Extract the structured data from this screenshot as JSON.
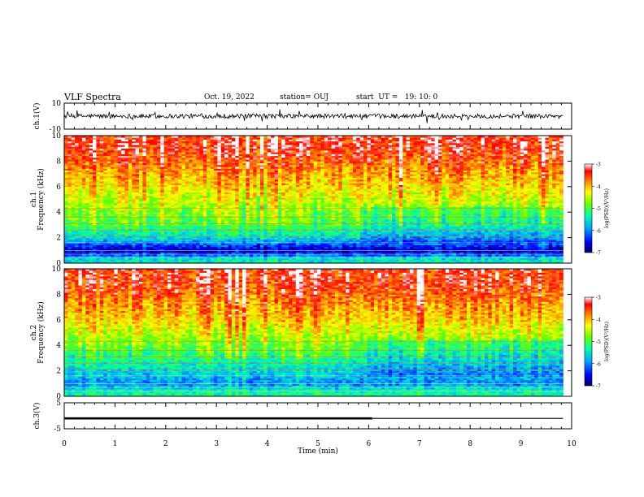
{
  "header": {
    "title": "VLF Spectra",
    "date": "Oct. 19, 2022",
    "station": "station= OUJ",
    "start": "start  UT =   19: 10: 0"
  },
  "chart_data": [
    {
      "type": "line",
      "panel": "ch1-waveform",
      "ylabel": "ch.1(V)",
      "ylim": [
        -10,
        10
      ],
      "yticks": [
        "10",
        "-10"
      ],
      "xlim": [
        0,
        10
      ],
      "color": "#000000",
      "series": [
        {
          "baseline": 0,
          "noise_amplitude": 3.5
        }
      ]
    },
    {
      "type": "heatmap",
      "panel": "ch1-spectrogram",
      "ylabel": "ch.1\nFrequency (kHz)",
      "ylim": [
        0,
        10
      ],
      "yticks": [
        "0",
        "2",
        "4",
        "6",
        "8",
        "10"
      ],
      "xlim": [
        0,
        9.83
      ],
      "colorbar": {
        "label": "log(PSD)(V²/Hz)",
        "range": [
          -7,
          -3
        ],
        "ticks": [
          "-3",
          "-4",
          "-5",
          "-6",
          "-7"
        ],
        "colors": [
          "#000066",
          "#0000ff",
          "#00aaff",
          "#00ffaa",
          "#66ff00",
          "#ffff00",
          "#ff8800",
          "#ff0000",
          "#ffffff"
        ]
      },
      "bands": [
        {
          "freq_khz": 9,
          "log_psd": -3.4
        },
        {
          "freq_khz": 6,
          "log_psd": -4.2
        },
        {
          "freq_khz": 4.5,
          "log_psd": -4.6
        },
        {
          "freq_khz": 3,
          "log_psd": -5.0
        },
        {
          "freq_khz": 2,
          "log_psd": -5.6
        },
        {
          "freq_khz": 1,
          "log_psd": -6.8
        },
        {
          "freq_khz": 0.3,
          "log_psd": -5.5
        }
      ]
    },
    {
      "type": "heatmap",
      "panel": "ch2-spectrogram",
      "ylabel": "ch.2\nFrequency (kHz)",
      "ylim": [
        0,
        10
      ],
      "yticks": [
        "0",
        "2",
        "4",
        "6",
        "8",
        "10"
      ],
      "xlim": [
        0,
        9.83
      ],
      "colorbar": {
        "label": "log(PSD)(V²/Hz)",
        "range": [
          -7,
          -3
        ],
        "ticks": [
          "-3",
          "-4",
          "-5",
          "-6",
          "-7"
        ],
        "colors": [
          "#000066",
          "#0000ff",
          "#00aaff",
          "#00ffaa",
          "#66ff00",
          "#ffff00",
          "#ff8800",
          "#ff0000",
          "#ffffff"
        ]
      },
      "bands": [
        {
          "freq_khz": 9,
          "log_psd": -3.4
        },
        {
          "freq_khz": 6,
          "log_psd": -4.1
        },
        {
          "freq_khz": 4,
          "log_psd": -4.8
        },
        {
          "freq_khz": 3,
          "log_psd": -5.2
        },
        {
          "freq_khz": 2,
          "log_psd": -5.6
        },
        {
          "freq_khz": 1,
          "log_psd": -6.0
        },
        {
          "freq_khz": 0.3,
          "log_psd": -5.3
        }
      ]
    },
    {
      "type": "line",
      "panel": "ch3-waveform",
      "ylabel": "ch.3(V)",
      "ylim": [
        -5,
        5
      ],
      "yticks": [
        "5",
        "-5"
      ],
      "xlim": [
        0,
        10
      ],
      "xlabel": "Time (min)",
      "xticks": [
        "0",
        "1",
        "2",
        "3",
        "4",
        "5",
        "6",
        "7",
        "8",
        "9",
        "10"
      ],
      "color": "#000000",
      "series": [
        {
          "x": [
            0,
            6.07
          ],
          "y": [
            -1,
            -1
          ],
          "width": "thick"
        },
        {
          "x": [
            6.07,
            9.83
          ],
          "y": [
            -1,
            -1
          ],
          "width": "thin"
        }
      ]
    }
  ]
}
